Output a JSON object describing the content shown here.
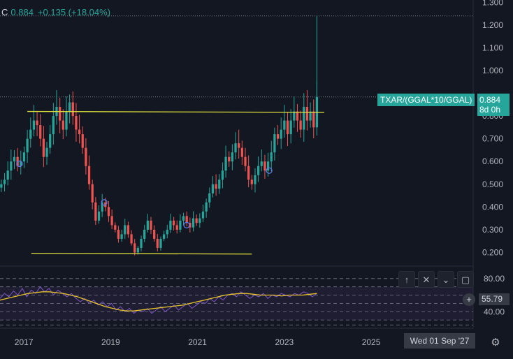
{
  "legend": {
    "prefix": "C",
    "value": "0.884",
    "change": "+0.135 (+18.04%)"
  },
  "symbol_label": "TXAR/(GGAL*10/GGAL)",
  "last_price": "0.884",
  "countdown": "8d 0h",
  "oscillator_value": "55.79",
  "crosshair_date": "Wed 01 Sep '27",
  "toolbar": {
    "up_icon": "↑",
    "close_icon": "✕",
    "collapse_icon": "⌄",
    "maximize_icon": "▢"
  },
  "zoom_icon": "+",
  "settings_icon": "⚙",
  "colors": {
    "up": "#26a69a",
    "down": "#ef5350",
    "trendline": "#e0e03c",
    "ma": "#e6c229",
    "rsi": "#7e57c2"
  },
  "chart_data": [
    {
      "type": "candlestick",
      "x_tick_labels": [
        "2017",
        "2019",
        "2021",
        "2023",
        "2025"
      ],
      "y_tick_labels": [
        "1.300",
        "1.200",
        "1.100",
        "1.000",
        "0.800",
        "0.700",
        "0.600",
        "0.500",
        "0.400",
        "0.300",
        "0.200"
      ],
      "y_ticks": [
        1.3,
        1.2,
        1.1,
        1.0,
        0.8,
        0.7,
        0.6,
        0.5,
        0.4,
        0.3,
        0.2
      ],
      "ylim": [
        0.14,
        1.31
      ],
      "x_ticks": [
        2017,
        2019,
        2021,
        2023,
        2025
      ],
      "xlim": [
        2016.45,
        2027.35
      ],
      "closes": [
        0.5,
        0.52,
        0.56,
        0.6,
        0.62,
        0.58,
        0.6,
        0.64,
        0.7,
        0.74,
        0.78,
        0.76,
        0.7,
        0.62,
        0.66,
        0.72,
        0.8,
        0.84,
        0.78,
        0.74,
        0.82,
        0.86,
        0.8,
        0.74,
        0.72,
        0.66,
        0.58,
        0.5,
        0.42,
        0.34,
        0.38,
        0.42,
        0.4,
        0.36,
        0.32,
        0.3,
        0.26,
        0.28,
        0.32,
        0.28,
        0.24,
        0.2,
        0.22,
        0.26,
        0.3,
        0.34,
        0.3,
        0.26,
        0.22,
        0.26,
        0.28,
        0.3,
        0.34,
        0.32,
        0.3,
        0.34,
        0.36,
        0.33,
        0.31,
        0.35,
        0.33,
        0.35,
        0.38,
        0.42,
        0.46,
        0.5,
        0.48,
        0.52,
        0.56,
        0.62,
        0.6,
        0.64,
        0.68,
        0.66,
        0.62,
        0.58,
        0.52,
        0.5,
        0.54,
        0.58,
        0.6,
        0.56,
        0.6,
        0.64,
        0.72,
        0.7,
        0.74,
        0.78,
        0.72,
        0.78,
        0.82,
        0.78,
        0.74,
        0.84,
        0.78,
        0.82,
        0.75,
        0.884
      ],
      "trendlines": [
        {
          "x": [
            2017.08,
            2023.92
          ],
          "y": [
            0.82,
            0.816
          ]
        },
        {
          "x": [
            2017.17,
            2022.25
          ],
          "y": [
            0.196,
            0.193
          ]
        }
      ],
      "hline_dotted": [
        1.24,
        0.884
      ],
      "markers": [
        {
          "x": 2016.9,
          "y": 0.59
        },
        {
          "x": 2018.85,
          "y": 0.42
        },
        {
          "x": 2020.75,
          "y": 0.32
        },
        {
          "x": 2022.65,
          "y": 0.56
        }
      ],
      "title": "",
      "xlabel": "",
      "ylabel": "",
      "grid": false
    },
    {
      "type": "line",
      "y_tick_labels": [
        "80.00",
        "40.00"
      ],
      "y_ticks": [
        80,
        40
      ],
      "ylim": [
        20,
        95
      ],
      "bands": [
        70,
        60,
        50,
        30
      ],
      "rsi": [
        56,
        62,
        58,
        65,
        60,
        68,
        58,
        66,
        62,
        70,
        64,
        68,
        60,
        66,
        62,
        58,
        62,
        56,
        52,
        56,
        50,
        54,
        48,
        52,
        46,
        50,
        42,
        46,
        40,
        44,
        38,
        42,
        40,
        44,
        38,
        42,
        46,
        40,
        44,
        48,
        42,
        46,
        50,
        44,
        48,
        52,
        50,
        56,
        52,
        58,
        54,
        60,
        62,
        58,
        64,
        60,
        56,
        60,
        58,
        62,
        56,
        60,
        58,
        62,
        60,
        58,
        62,
        60,
        64,
        62,
        58,
        62
      ],
      "ma": [
        54,
        56,
        58,
        60,
        62,
        63,
        64,
        64,
        63,
        62,
        60,
        58,
        55,
        52,
        49,
        46,
        44,
        42,
        41,
        41,
        42,
        43,
        44,
        45,
        46,
        47,
        48,
        50,
        52,
        54,
        56,
        58,
        60,
        61,
        62,
        62,
        61,
        60,
        60,
        60,
        59,
        60,
        60,
        60,
        61,
        62
      ],
      "title": "",
      "xlabel": "",
      "ylabel": ""
    }
  ]
}
